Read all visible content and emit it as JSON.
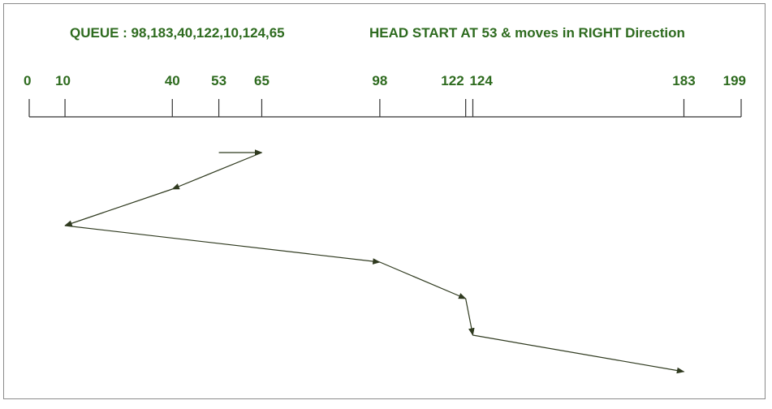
{
  "header": {
    "queue": "QUEUE : 98,183,40,122,10,124,65",
    "head_start": "HEAD START AT 53 & moves in RIGHT Direction"
  },
  "colors": {
    "text": "#2e6b1f",
    "line": "#2f3a1f",
    "axis": "#333333"
  },
  "axis": {
    "min": 0,
    "max": 199,
    "ticks": [
      0,
      10,
      40,
      53,
      65,
      98,
      122,
      124,
      183,
      199
    ],
    "tick_labels": [
      "0",
      "10",
      "40",
      "53",
      "65",
      "98",
      "122",
      "124",
      "183",
      "199"
    ]
  },
  "path": {
    "start": 53,
    "sequence": [
      53,
      65,
      40,
      10,
      98,
      122,
      124,
      183
    ]
  }
}
